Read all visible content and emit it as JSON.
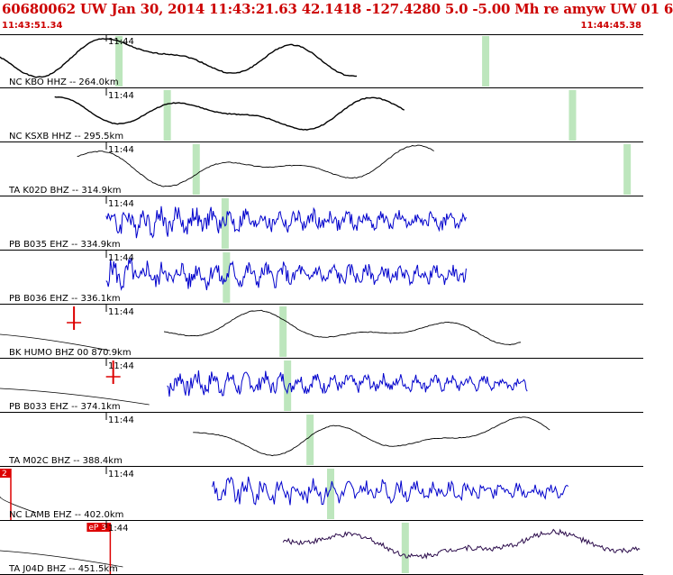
{
  "header": {
    "title": "60680062 UW Jan 30, 2014 11:43:21.63   42.1418 -127.4280  5.0 -5.00 Mh re amyw UW 01   6",
    "start_time": "11:43:51.34",
    "end_time": "11:44:45.38"
  },
  "colors": {
    "title": "#cc0000",
    "trace_long_period": "#000000",
    "trace_short_period": "#0000cc",
    "trace_broadband_j04d": "#2a0a4a",
    "phase_marker": "#bde6bd",
    "pick_marker": "#dd0000",
    "divider": "#000000"
  },
  "traces": [
    {
      "label": "NC KBO HHZ -- 264.0km",
      "minute": "11:44",
      "type": "lp",
      "amp": 0.75,
      "seed": 1,
      "start": 0.0,
      "end": 0.555,
      "markers": [
        0.185,
        0.755
      ],
      "pick": null
    },
    {
      "label": "NC KSXB HHZ -- 295.5km",
      "minute": "11:44",
      "type": "lp",
      "amp": 0.6,
      "seed": 2,
      "start": 0.085,
      "end": 0.63,
      "markers": [
        0.26,
        0.89
      ],
      "pick": null
    },
    {
      "label": "TA K02D BHZ -- 314.9km",
      "minute": "11:44",
      "type": "lp_thin",
      "amp": 0.65,
      "seed": 3,
      "start": 0.12,
      "end": 0.675,
      "markers": [
        0.305,
        0.975
      ],
      "pick": null
    },
    {
      "label": "PB B035 EHZ -- 334.9km",
      "minute": "11:44",
      "type": "sp",
      "amp": 0.55,
      "seed": 4,
      "start": 0.165,
      "end": 0.725,
      "markers": [
        0.35
      ],
      "pick": null
    },
    {
      "label": "PB B036 EHZ -- 336.1km",
      "minute": "11:44",
      "type": "sp",
      "amp": 0.55,
      "seed": 5,
      "start": 0.165,
      "end": 0.725,
      "markers": [
        0.352
      ],
      "pick": null
    },
    {
      "label": "BK HUMO BHZ 00 870.9km",
      "minute": "11:44",
      "type": "lp_thin",
      "amp": 0.55,
      "seed": 6,
      "start": 0.255,
      "end": 0.81,
      "markers": [
        0.44
      ],
      "pick": {
        "x": 0.115,
        "text": "",
        "cross": true
      }
    },
    {
      "label": "PB B033 EHZ -- 374.1km",
      "minute": "11:44",
      "type": "sp",
      "amp": 0.45,
      "seed": 7,
      "start": 0.26,
      "end": 0.82,
      "markers": [
        0.447
      ],
      "pick": {
        "x": 0.176,
        "text": "",
        "cross": true
      }
    },
    {
      "label": "TA M02C BHZ -- 388.4km",
      "minute": "11:44",
      "type": "lp_thin",
      "amp": 0.65,
      "seed": 8,
      "start": 0.3,
      "end": 0.855,
      "markers": [
        0.482
      ],
      "pick": null
    },
    {
      "label": "NC LAMB EHZ -- 402.0km",
      "minute": "11:44",
      "type": "sp_med",
      "amp": 0.5,
      "seed": 9,
      "start": 0.33,
      "end": 0.885,
      "markers": [
        0.514
      ],
      "pick": {
        "x": 0.0,
        "text": "2",
        "cross": false
      }
    },
    {
      "label": "TA J04D BHZ -- 451.5km",
      "minute": "1:44",
      "type": "bb",
      "amp": 0.55,
      "seed": 10,
      "start": 0.44,
      "end": 0.995,
      "markers": [
        0.63
      ],
      "pick": {
        "x": 0.135,
        "text": "eP 3",
        "cross": false
      }
    }
  ]
}
